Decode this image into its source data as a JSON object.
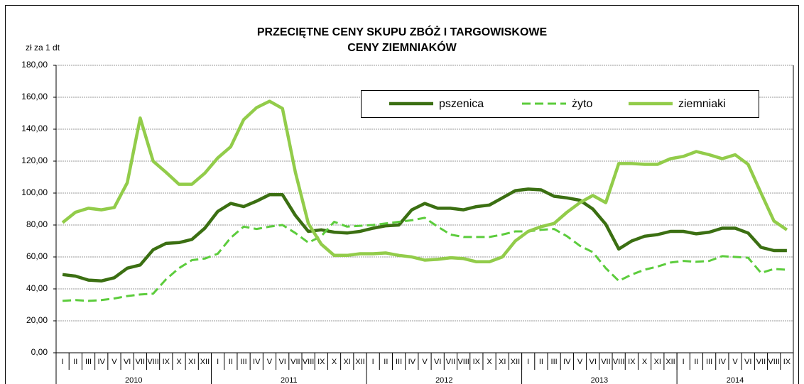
{
  "chart_data": {
    "type": "line",
    "title": [
      "PRZECIĘTNE CENY SKUPU ZBÓŻ I TARGOWISKOWE",
      "CENY ZIEMNIAKÓW"
    ],
    "y_label": "zł za 1 dt",
    "categories": [
      "I",
      "II",
      "III",
      "IV",
      "V",
      "VI",
      "VII",
      "VIII",
      "IX",
      "X",
      "XI",
      "XII",
      "I",
      "II",
      "III",
      "IV",
      "V",
      "VI",
      "VII",
      "VIII",
      "IX",
      "X",
      "XI",
      "XII",
      "I",
      "II",
      "III",
      "IV",
      "V",
      "VI",
      "VII",
      "VIII",
      "IX",
      "X",
      "XI",
      "XII",
      "I",
      "II",
      "III",
      "IV",
      "V",
      "VI",
      "VII",
      "VIII",
      "IX",
      "X",
      "XI",
      "XII",
      "I",
      "II",
      "III",
      "IV",
      "V",
      "VI",
      "VII",
      "VIII",
      "IX"
    ],
    "years": [
      "2010",
      "2011",
      "2012",
      "2013",
      "2014"
    ],
    "series": [
      {
        "name": "pszenica",
        "color": "#3b6f12",
        "dashed": false,
        "values": [
          49,
          48,
          45.5,
          45,
          47,
          53,
          55,
          64.5,
          68.5,
          69,
          71,
          78,
          88.5,
          93.5,
          91.5,
          95,
          99,
          99,
          86,
          76,
          77,
          75.5,
          75,
          76,
          78,
          79.5,
          80,
          89.5,
          93.5,
          90.5,
          90.5,
          89.5,
          91.5,
          92.5,
          97,
          101.5,
          102.5,
          102,
          98,
          97,
          95.5,
          90,
          80.5,
          65,
          70,
          73,
          74,
          76,
          76,
          74.5,
          75.5,
          78,
          78,
          75,
          66,
          64,
          64
        ]
      },
      {
        "name": "żyto",
        "color": "#5ccc3c",
        "dashed": true,
        "values": [
          32.5,
          33,
          32.5,
          33,
          34,
          35.5,
          36.5,
          37,
          46,
          53,
          58,
          59,
          62,
          72,
          79,
          77.5,
          79,
          80,
          75,
          69,
          73,
          82,
          79,
          79.5,
          80,
          81,
          82,
          83,
          84.5,
          79,
          74,
          72.5,
          72.5,
          72.5,
          74,
          76,
          76,
          77,
          77.5,
          73,
          67,
          63,
          53,
          45,
          49,
          52,
          54,
          56.5,
          57.5,
          57,
          57.5,
          60.5,
          60,
          59.5,
          50,
          52.5,
          52
        ]
      },
      {
        "name": "ziemniaki",
        "color": "#92cc4a",
        "dashed": false,
        "values": [
          81.5,
          88,
          90.5,
          89.5,
          91,
          106.5,
          147,
          120,
          113,
          105.5,
          105.5,
          112.5,
          122,
          129,
          146,
          153.5,
          157.5,
          153,
          113,
          81,
          68,
          61,
          61,
          62,
          62,
          62.5,
          61,
          60,
          58,
          58.5,
          59.5,
          59,
          57,
          57,
          60,
          70,
          76,
          79,
          81,
          88,
          94,
          98.5,
          94,
          118.5,
          118.5,
          118,
          118,
          121.5,
          123,
          126,
          124,
          121.5,
          124,
          118,
          100,
          82.5,
          77
        ]
      }
    ],
    "ylim": [
      0,
      180
    ],
    "yticks": [
      {
        "value": 0,
        "label": "0,00"
      },
      {
        "value": 20,
        "label": "20,00"
      },
      {
        "value": 40,
        "label": "40,00"
      },
      {
        "value": 60,
        "label": "60,00"
      },
      {
        "value": 80,
        "label": "80,00"
      },
      {
        "value": 100,
        "label": "100,00"
      },
      {
        "value": 120,
        "label": "120,00"
      },
      {
        "value": 140,
        "label": "140,00"
      },
      {
        "value": 160,
        "label": "160,00"
      },
      {
        "value": 180,
        "label": "180,00"
      }
    ],
    "grid": true
  }
}
